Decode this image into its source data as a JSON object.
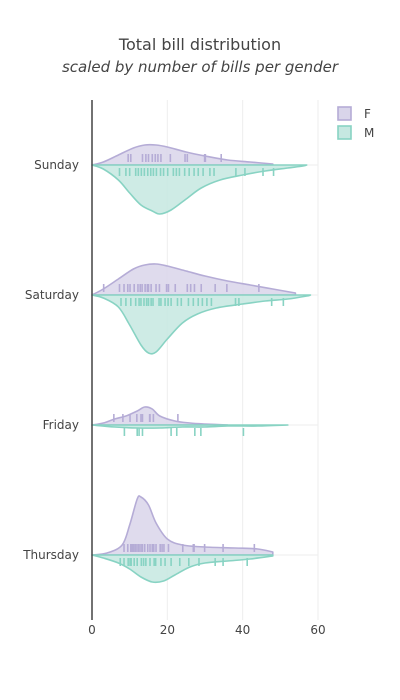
{
  "chart_data": {
    "type": "violin",
    "title": "Total bill distribution",
    "subtitle": "scaled by number of bills per gender",
    "orientation": "horizontal",
    "side_layout": {
      "F": "positive",
      "M": "negative"
    },
    "categories": [
      "Thursday",
      "Friday",
      "Saturday",
      "Sunday"
    ],
    "xlim": [
      0,
      60
    ],
    "x_ticks": [
      0,
      20,
      40,
      60
    ],
    "grid": true,
    "legend": {
      "position": "top-right",
      "entries": [
        "F",
        "M"
      ]
    },
    "series": [
      {
        "name": "F",
        "fill": "#d9d5ea",
        "line": "#b5acd6",
        "rug": "#b5acd6",
        "days": [
          {
            "day": "Thursday",
            "density": [
              [
                0,
                0
              ],
              [
                4,
                2
              ],
              [
                8,
                10
              ],
              [
                10,
                30
              ],
              [
                12,
                56
              ],
              [
                13,
                58
              ],
              [
                15,
                50
              ],
              [
                17,
                32
              ],
              [
                20,
                16
              ],
              [
                24,
                10
              ],
              [
                30,
                8
              ],
              [
                38,
                7
              ],
              [
                44,
                6
              ],
              [
                48,
                3
              ]
            ],
            "points": [
              8.5,
              9.5,
              10.3,
              10.7,
              11.0,
              11.4,
              11.7,
              12.2,
              12.5,
              13.0,
              13.4,
              14.0,
              14.8,
              15.4,
              16.0,
              16.4,
              17.0,
              18.1,
              18.6,
              19.1,
              20.3,
              24.1,
              26.9,
              27.1,
              29.9,
              34.8,
              43.1
            ]
          },
          {
            "day": "Friday",
            "density": [
              [
                0,
                0
              ],
              [
                3,
                2
              ],
              [
                6,
                6
              ],
              [
                9,
                9
              ],
              [
                12,
                14
              ],
              [
                14,
                18
              ],
              [
                16,
                16
              ],
              [
                18,
                9
              ],
              [
                22,
                4
              ],
              [
                26,
                2
              ],
              [
                30,
                1
              ],
              [
                36,
                0
              ]
            ],
            "points": [
              5.8,
              8.2,
              10.1,
              11.9,
              13.0,
              13.4,
              15.3,
              15.4,
              16.3,
              22.8
            ]
          },
          {
            "day": "Saturday",
            "density": [
              [
                0,
                0
              ],
              [
                3,
                6
              ],
              [
                7,
                16
              ],
              [
                11,
                26
              ],
              [
                14,
                30
              ],
              [
                17,
                31
              ],
              [
                20,
                29
              ],
              [
                25,
                24
              ],
              [
                30,
                19
              ],
              [
                36,
                14
              ],
              [
                42,
                10
              ],
              [
                48,
                6
              ],
              [
                54,
                2
              ]
            ],
            "points": [
              3.1,
              7.3,
              8.5,
              9.5,
              10.1,
              11.2,
              12.2,
              12.8,
              13.3,
              14.1,
              14.7,
              15.0,
              15.7,
              17.0,
              17.9,
              19.8,
              20.3,
              22.1,
              25.3,
              26.2,
              27.2,
              29.0,
              32.7,
              35.8,
              44.3
            ]
          },
          {
            "day": "Sunday",
            "density": [
              [
                0,
                0
              ],
              [
                3,
                3
              ],
              [
                7,
                10
              ],
              [
                11,
                17
              ],
              [
                14,
                20
              ],
              [
                17,
                20
              ],
              [
                20,
                18
              ],
              [
                25,
                13
              ],
              [
                30,
                9
              ],
              [
                36,
                5
              ],
              [
                42,
                3
              ],
              [
                48,
                1
              ]
            ],
            "points": [
              9.6,
              10.3,
              13.4,
              14.3,
              15.0,
              16.0,
              16.8,
              17.5,
              18.3,
              20.8,
              24.7,
              25.3,
              29.9,
              30.1,
              34.3
            ]
          }
        ]
      },
      {
        "name": "M",
        "fill": "#c6e8e1",
        "line": "#88d3c3",
        "rug": "#88d3c3",
        "days": [
          {
            "day": "Thursday",
            "density": [
              [
                0,
                0
              ],
              [
                3,
                3
              ],
              [
                7,
                8
              ],
              [
                10,
                14
              ],
              [
                13,
                22
              ],
              [
                16,
                27
              ],
              [
                19,
                26
              ],
              [
                22,
                20
              ],
              [
                26,
                12
              ],
              [
                30,
                8
              ],
              [
                36,
                6
              ],
              [
                42,
                4
              ],
              [
                48,
                1
              ]
            ],
            "points": [
              7.5,
              8.5,
              9.6,
              10.1,
              10.4,
              11.2,
              12.0,
              13.1,
              13.7,
              14.3,
              15.4,
              16.5,
              16.9,
              18.3,
              19.4,
              21.0,
              23.3,
              25.7,
              28.4,
              32.7,
              34.8,
              41.2
            ]
          },
          {
            "day": "Friday",
            "density": [
              [
                0,
                0
              ],
              [
                6,
                2
              ],
              [
                12,
                3
              ],
              [
                18,
                3
              ],
              [
                24,
                2
              ],
              [
                30,
                2
              ],
              [
                36,
                1
              ],
              [
                44,
                1
              ],
              [
                52,
                0
              ]
            ],
            "points": [
              8.6,
              12.0,
              12.5,
              13.4,
              21.0,
              22.5,
              27.3,
              28.9,
              40.2
            ]
          },
          {
            "day": "Saturday",
            "density": [
              [
                0,
                0
              ],
              [
                3,
                3
              ],
              [
                7,
                12
              ],
              [
                10,
                30
              ],
              [
                13,
                50
              ],
              [
                15,
                58
              ],
              [
                17,
                57
              ],
              [
                20,
                44
              ],
              [
                24,
                28
              ],
              [
                28,
                19
              ],
              [
                33,
                13
              ],
              [
                40,
                9
              ],
              [
                46,
                6
              ],
              [
                52,
                4
              ],
              [
                57,
                1
              ],
              [
                58,
                0
              ]
            ],
            "points": [
              7.7,
              9.0,
              10.3,
              11.6,
              12.5,
              13.0,
              13.8,
              14.5,
              15.0,
              15.7,
              16.2,
              17.8,
              18.3,
              19.4,
              20.2,
              21.0,
              22.7,
              23.7,
              25.6,
              26.9,
              28.2,
              29.3,
              30.5,
              31.7,
              38.1,
              39.0,
              47.7,
              50.8
            ]
          },
          {
            "day": "Sunday",
            "density": [
              [
                0,
                0
              ],
              [
                3,
                4
              ],
              [
                7,
                15
              ],
              [
                10,
                28
              ],
              [
                13,
                40
              ],
              [
                16,
                46
              ],
              [
                18,
                49
              ],
              [
                21,
                45
              ],
              [
                25,
                34
              ],
              [
                29,
                23
              ],
              [
                34,
                15
              ],
              [
                40,
                10
              ],
              [
                46,
                6
              ],
              [
                52,
                3
              ],
              [
                56,
                1
              ],
              [
                57,
                0
              ]
            ],
            "points": [
              7.3,
              9.0,
              10.0,
              11.6,
              12.3,
              13.1,
              13.9,
              14.8,
              15.6,
              16.3,
              17.1,
              18.2,
              19.0,
              20.1,
              21.6,
              22.4,
              23.2,
              24.6,
              25.8,
              27.1,
              28.2,
              29.5,
              31.3,
              32.4,
              38.2,
              40.6,
              45.4,
              48.2
            ]
          }
        ]
      }
    ]
  }
}
